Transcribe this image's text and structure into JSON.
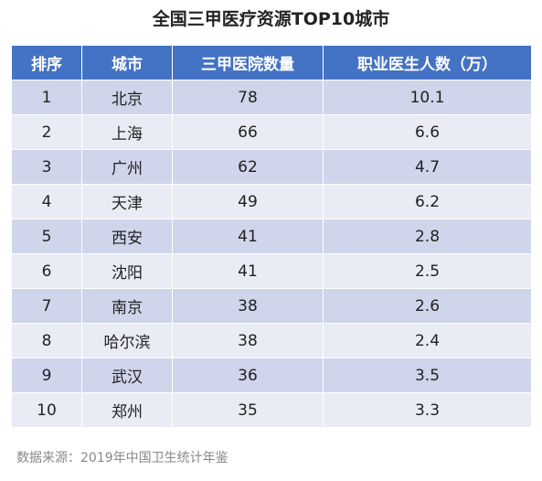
{
  "title": "全国三甲医疗资源TOP10城市",
  "table": {
    "headers": [
      "排序",
      "城市",
      "三甲医院数量",
      "职业医生人数（万）"
    ],
    "rows": [
      [
        "1",
        "北京",
        "78",
        "10.1"
      ],
      [
        "2",
        "上海",
        "66",
        "6.6"
      ],
      [
        "3",
        "广州",
        "62",
        "4.7"
      ],
      [
        "4",
        "天津",
        "49",
        "6.2"
      ],
      [
        "5",
        "西安",
        "41",
        "2.8"
      ],
      [
        "6",
        "沈阳",
        "41",
        "2.5"
      ],
      [
        "7",
        "南京",
        "38",
        "2.6"
      ],
      [
        "8",
        "哈尔滨",
        "38",
        "2.4"
      ],
      [
        "9",
        "武汉",
        "36",
        "3.5"
      ],
      [
        "10",
        "郑州",
        "35",
        "3.3"
      ]
    ]
  },
  "source": "数据来源：2019年中国卫生统计年鉴",
  "colors": {
    "header_bg": "#4472c4",
    "row_odd_bg": "#cfd5ea",
    "row_even_bg": "#e9ebf5"
  }
}
